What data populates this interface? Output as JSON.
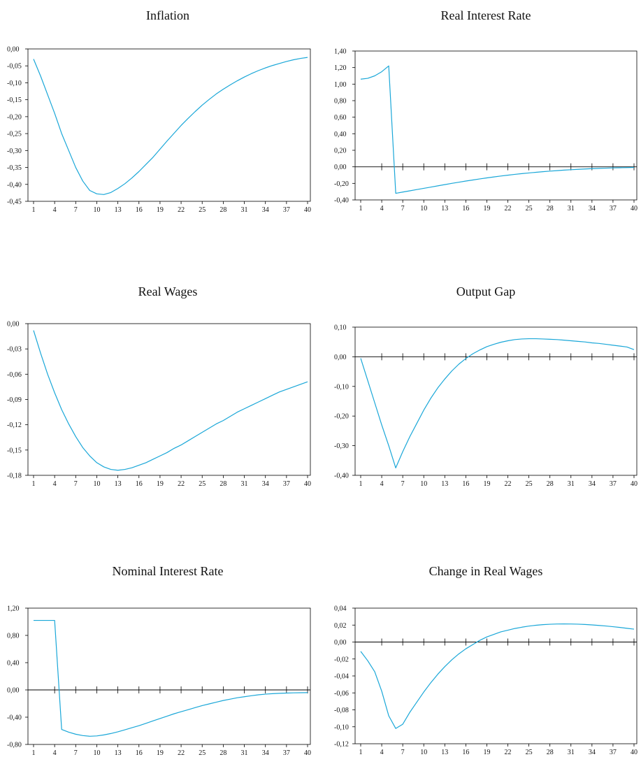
{
  "styles": {
    "line_color": "#1aa7d8",
    "axis_color": "#000000",
    "background": "#ffffff"
  },
  "chart_data": [
    {
      "type": "line",
      "title": "Inflation",
      "x_ticks": [
        1,
        4,
        7,
        10,
        13,
        16,
        19,
        22,
        25,
        28,
        31,
        34,
        37,
        40
      ],
      "y_ticks": [
        "0,00",
        "-0,05",
        "-0,10",
        "-0,15",
        "-0,20",
        "-0,25",
        "-0,30",
        "-0,35",
        "-0,40",
        "-0,45"
      ],
      "ylim": [
        -0.45,
        0.0
      ],
      "zero_axis": false,
      "x": [
        1,
        2,
        3,
        4,
        5,
        6,
        7,
        8,
        9,
        10,
        11,
        12,
        13,
        14,
        15,
        16,
        17,
        18,
        19,
        20,
        21,
        22,
        23,
        24,
        25,
        26,
        27,
        28,
        29,
        30,
        31,
        32,
        33,
        34,
        35,
        36,
        37,
        38,
        39,
        40
      ],
      "values": [
        -0.03,
        -0.08,
        -0.135,
        -0.19,
        -0.25,
        -0.3,
        -0.35,
        -0.39,
        -0.418,
        -0.428,
        -0.43,
        -0.424,
        -0.412,
        -0.398,
        -0.381,
        -0.362,
        -0.341,
        -0.32,
        -0.296,
        -0.272,
        -0.249,
        -0.226,
        -0.205,
        -0.185,
        -0.166,
        -0.149,
        -0.133,
        -0.119,
        -0.106,
        -0.094,
        -0.083,
        -0.073,
        -0.064,
        -0.056,
        -0.049,
        -0.043,
        -0.037,
        -0.032,
        -0.028,
        -0.025
      ]
    },
    {
      "type": "line",
      "title": "Real Interest Rate",
      "x_ticks": [
        1,
        4,
        7,
        10,
        13,
        16,
        19,
        22,
        25,
        28,
        31,
        34,
        37,
        40
      ],
      "y_ticks": [
        "1,40",
        "1,20",
        "1,00",
        "0,80",
        "0,60",
        "0,40",
        "0,20",
        "0,00",
        "-0,20",
        "-0,40"
      ],
      "ylim": [
        -0.4,
        1.4
      ],
      "zero_axis": true,
      "x": [
        1,
        2,
        3,
        4,
        5,
        6,
        7,
        8,
        9,
        10,
        11,
        12,
        13,
        14,
        15,
        16,
        17,
        18,
        19,
        20,
        21,
        22,
        23,
        24,
        25,
        26,
        27,
        28,
        29,
        30,
        31,
        32,
        33,
        34,
        35,
        36,
        37,
        38,
        39,
        40
      ],
      "values": [
        1.06,
        1.07,
        1.1,
        1.15,
        1.22,
        -0.32,
        -0.305,
        -0.29,
        -0.275,
        -0.26,
        -0.245,
        -0.23,
        -0.215,
        -0.2,
        -0.186,
        -0.172,
        -0.159,
        -0.146,
        -0.134,
        -0.122,
        -0.111,
        -0.101,
        -0.091,
        -0.082,
        -0.074,
        -0.066,
        -0.059,
        -0.052,
        -0.046,
        -0.04,
        -0.035,
        -0.03,
        -0.026,
        -0.022,
        -0.019,
        -0.016,
        -0.013,
        -0.011,
        -0.009,
        -0.007
      ]
    },
    {
      "type": "line",
      "title": "Real Wages",
      "x_ticks": [
        1,
        4,
        7,
        10,
        13,
        16,
        19,
        22,
        25,
        28,
        31,
        34,
        37,
        40
      ],
      "y_ticks": [
        "0,00",
        "-0,03",
        "-0,06",
        "-0,09",
        "-0,12",
        "-0,15",
        "-0,18"
      ],
      "ylim": [
        -0.18,
        0.0
      ],
      "zero_axis": false,
      "x": [
        1,
        2,
        3,
        4,
        5,
        6,
        7,
        8,
        9,
        10,
        11,
        12,
        13,
        14,
        15,
        16,
        17,
        18,
        19,
        20,
        21,
        22,
        23,
        24,
        25,
        26,
        27,
        28,
        29,
        30,
        31,
        32,
        33,
        34,
        35,
        36,
        37,
        38,
        39,
        40
      ],
      "values": [
        -0.008,
        -0.035,
        -0.06,
        -0.082,
        -0.102,
        -0.119,
        -0.134,
        -0.147,
        -0.157,
        -0.165,
        -0.17,
        -0.173,
        -0.174,
        -0.173,
        -0.171,
        -0.168,
        -0.165,
        -0.161,
        -0.157,
        -0.153,
        -0.148,
        -0.144,
        -0.139,
        -0.134,
        -0.129,
        -0.124,
        -0.119,
        -0.115,
        -0.11,
        -0.105,
        -0.101,
        -0.097,
        -0.093,
        -0.089,
        -0.085,
        -0.081,
        -0.078,
        -0.075,
        -0.072,
        -0.069
      ]
    },
    {
      "type": "line",
      "title": "Output Gap",
      "x_ticks": [
        1,
        4,
        7,
        10,
        13,
        16,
        19,
        22,
        25,
        28,
        31,
        34,
        37,
        40
      ],
      "y_ticks": [
        "0,10",
        "0,00",
        "-0,10",
        "-0,20",
        "-0,30",
        "-0,40"
      ],
      "ylim": [
        -0.4,
        0.1
      ],
      "zero_axis": true,
      "x": [
        1,
        2,
        3,
        4,
        5,
        6,
        7,
        8,
        9,
        10,
        11,
        12,
        13,
        14,
        15,
        16,
        17,
        18,
        19,
        20,
        21,
        22,
        23,
        24,
        25,
        26,
        27,
        28,
        29,
        30,
        31,
        32,
        33,
        34,
        35,
        36,
        37,
        38,
        39,
        40
      ],
      "values": [
        -0.005,
        -0.08,
        -0.155,
        -0.23,
        -0.3,
        -0.375,
        -0.32,
        -0.27,
        -0.225,
        -0.18,
        -0.14,
        -0.105,
        -0.075,
        -0.048,
        -0.025,
        -0.006,
        0.01,
        0.023,
        0.034,
        0.042,
        0.049,
        0.054,
        0.058,
        0.06,
        0.061,
        0.061,
        0.06,
        0.059,
        0.058,
        0.056,
        0.054,
        0.052,
        0.05,
        0.047,
        0.045,
        0.042,
        0.039,
        0.036,
        0.033,
        0.024
      ]
    },
    {
      "type": "line",
      "title": "Nominal Interest Rate",
      "x_ticks": [
        1,
        4,
        7,
        10,
        13,
        16,
        19,
        22,
        25,
        28,
        31,
        34,
        37,
        40
      ],
      "y_ticks": [
        "1,20",
        "0,80",
        "0,40",
        "0,00",
        "-0,40",
        "-0,80"
      ],
      "ylim": [
        -0.8,
        1.2
      ],
      "zero_axis": true,
      "x": [
        1,
        2,
        3,
        4,
        5,
        6,
        7,
        8,
        9,
        10,
        11,
        12,
        13,
        14,
        15,
        16,
        17,
        18,
        19,
        20,
        21,
        22,
        23,
        24,
        25,
        26,
        27,
        28,
        29,
        30,
        31,
        32,
        33,
        34,
        35,
        36,
        37,
        38,
        39,
        40
      ],
      "values": [
        1.02,
        1.02,
        1.02,
        1.02,
        -0.58,
        -0.62,
        -0.65,
        -0.67,
        -0.68,
        -0.675,
        -0.66,
        -0.64,
        -0.615,
        -0.585,
        -0.555,
        -0.525,
        -0.49,
        -0.455,
        -0.42,
        -0.385,
        -0.35,
        -0.32,
        -0.29,
        -0.26,
        -0.23,
        -0.205,
        -0.18,
        -0.155,
        -0.135,
        -0.115,
        -0.1,
        -0.085,
        -0.072,
        -0.062,
        -0.055,
        -0.05,
        -0.046,
        -0.043,
        -0.041,
        -0.04
      ]
    },
    {
      "type": "line",
      "title": "Change in Real Wages",
      "x_ticks": [
        1,
        4,
        7,
        10,
        13,
        16,
        19,
        22,
        25,
        28,
        31,
        34,
        37,
        40
      ],
      "y_ticks": [
        "0,04",
        "0,02",
        "0,00",
        "-0,02",
        "-0,04",
        "-0,06",
        "-0,08",
        "-0,10",
        "-0,12"
      ],
      "ylim": [
        -0.12,
        0.04
      ],
      "zero_axis": true,
      "x": [
        1,
        2,
        3,
        4,
        5,
        6,
        7,
        8,
        9,
        10,
        11,
        12,
        13,
        14,
        15,
        16,
        17,
        18,
        19,
        20,
        21,
        22,
        23,
        24,
        25,
        26,
        27,
        28,
        29,
        30,
        31,
        32,
        33,
        34,
        35,
        36,
        37,
        38,
        39,
        40
      ],
      "values": [
        -0.011,
        -0.022,
        -0.035,
        -0.058,
        -0.087,
        -0.102,
        -0.097,
        -0.083,
        -0.071,
        -0.059,
        -0.048,
        -0.038,
        -0.029,
        -0.021,
        -0.014,
        -0.008,
        -0.003,
        0.002,
        0.006,
        0.009,
        0.012,
        0.014,
        0.016,
        0.0175,
        0.0188,
        0.0198,
        0.0205,
        0.021,
        0.0213,
        0.0214,
        0.0213,
        0.0211,
        0.0207,
        0.0202,
        0.0196,
        0.0189,
        0.0181,
        0.0172,
        0.0162,
        0.0152
      ]
    }
  ]
}
